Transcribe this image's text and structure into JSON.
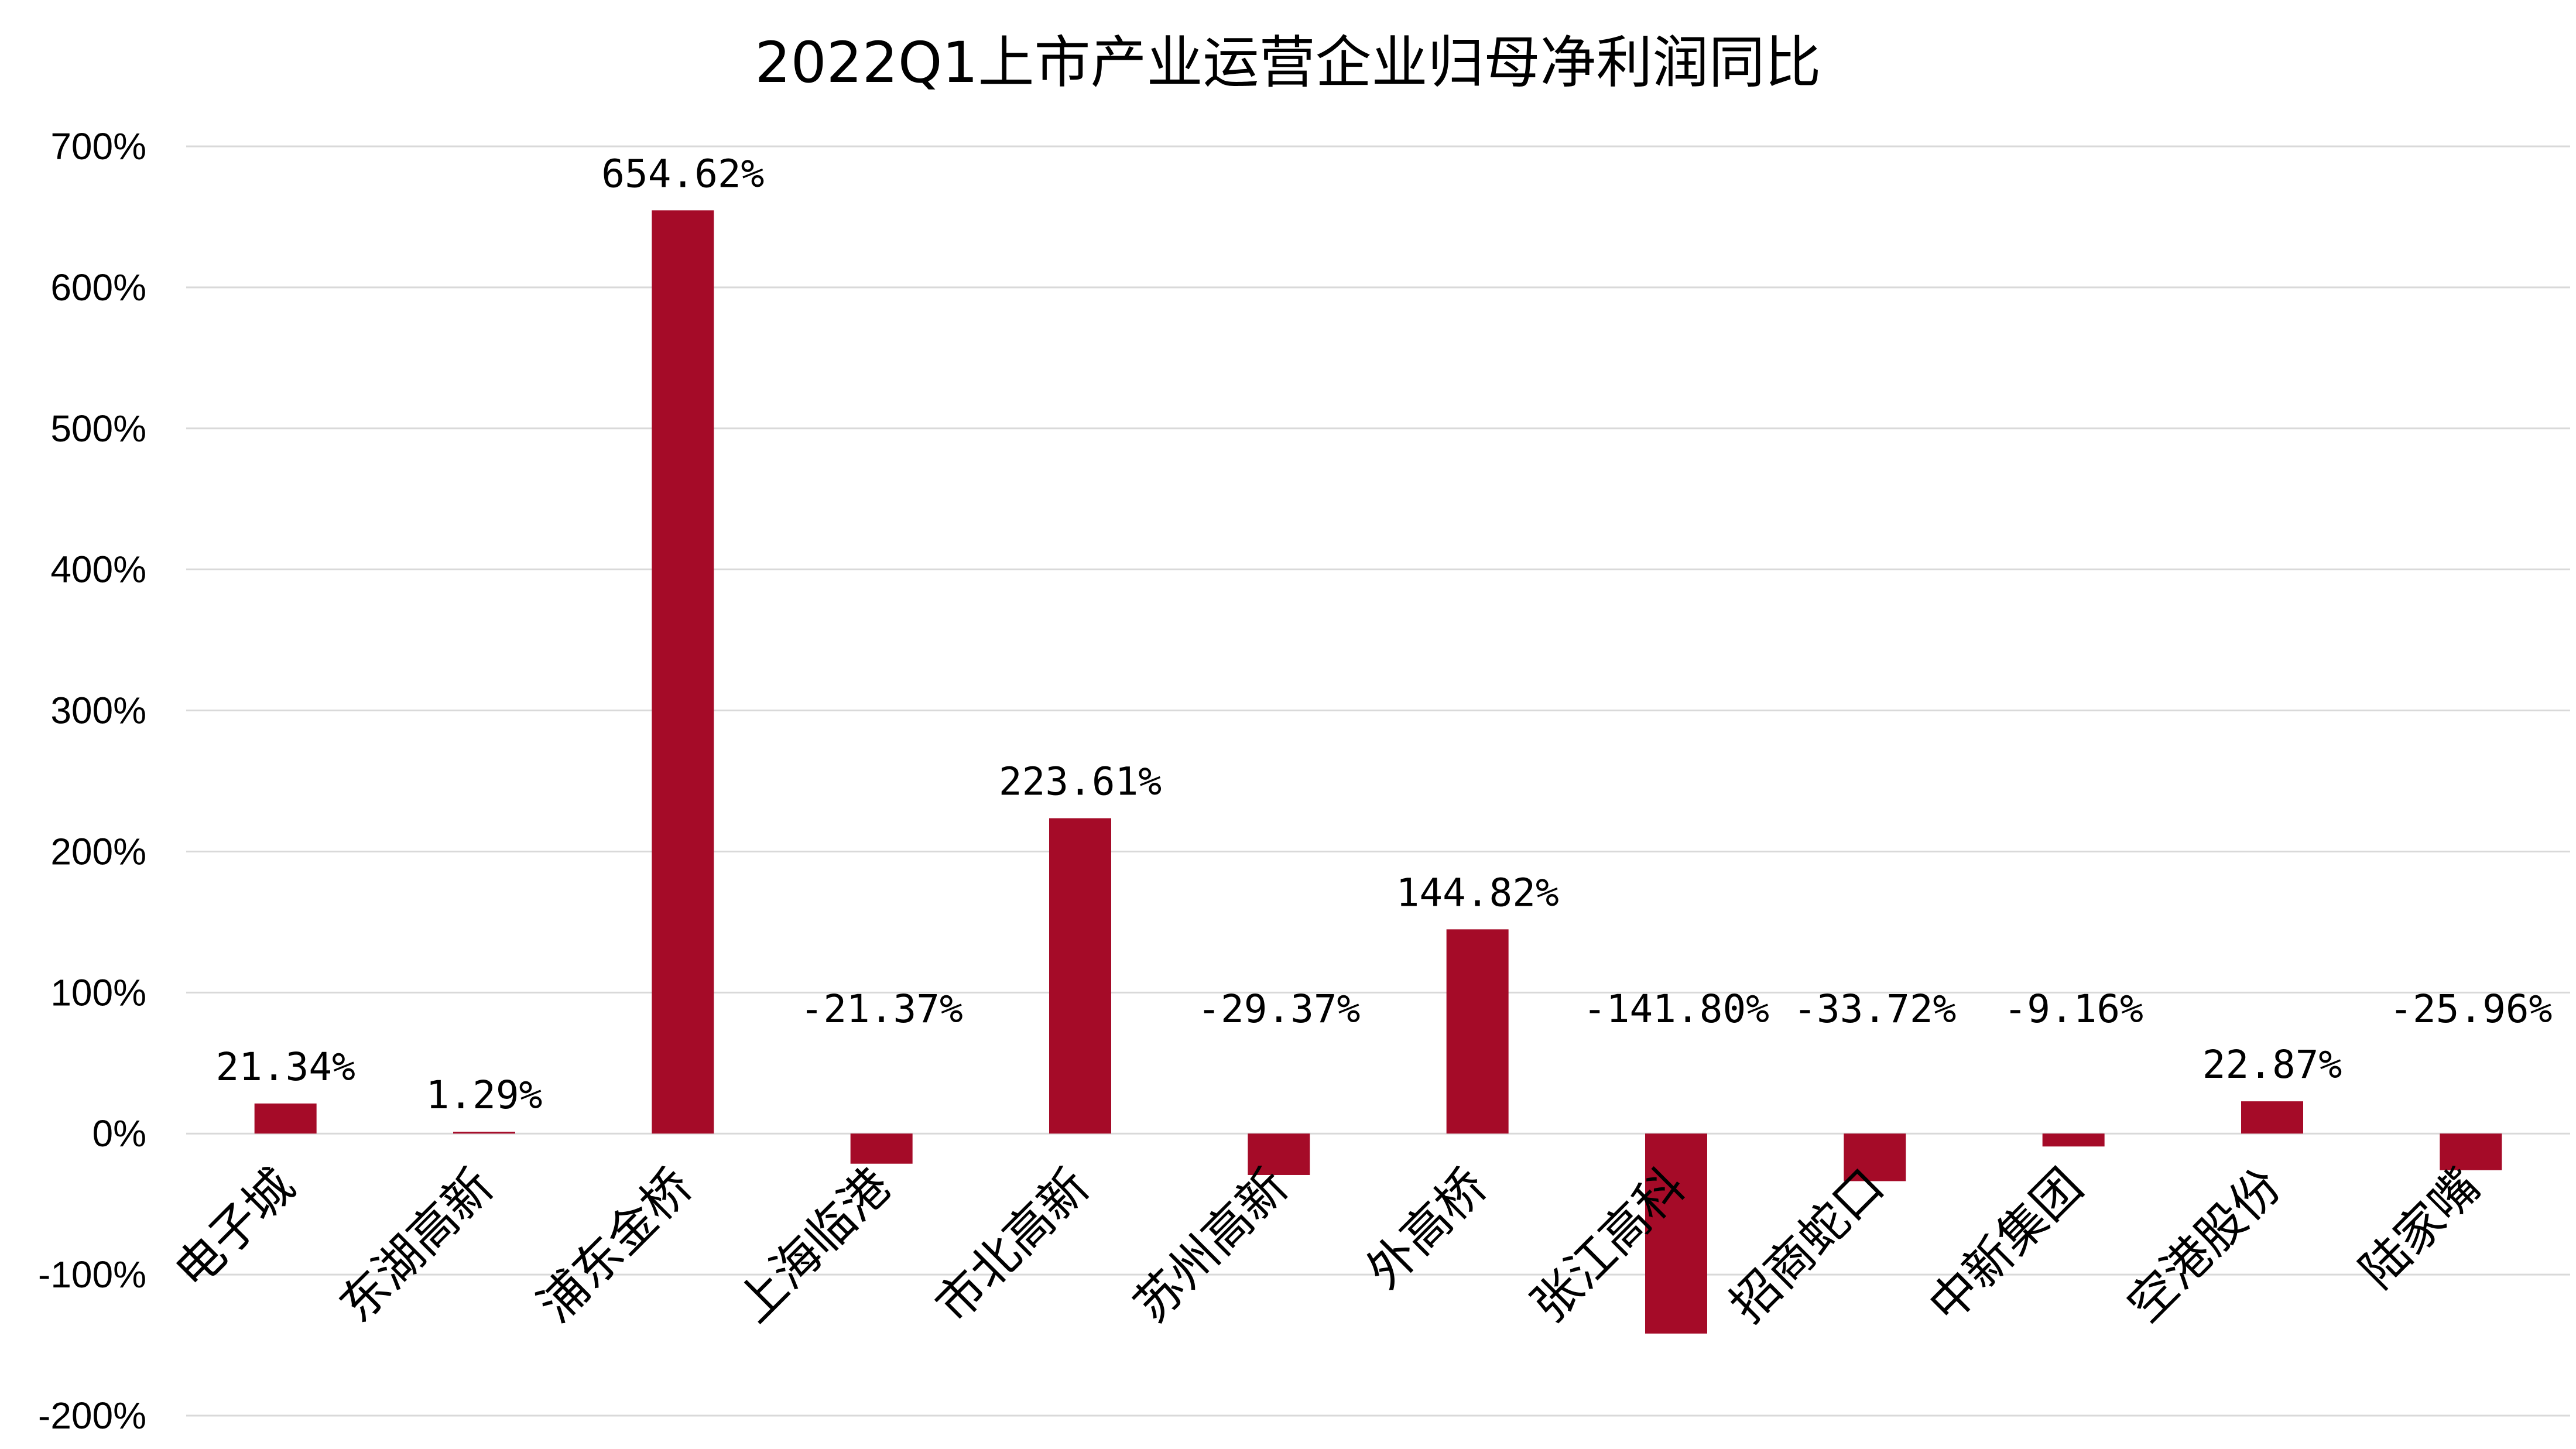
{
  "chart_data": {
    "type": "bar",
    "title": "2022Q1上市产业运营企业归母净利润同比",
    "xlabel": "",
    "ylabel": "",
    "ylim": [
      -200,
      700
    ],
    "yticks": [
      700,
      600,
      500,
      400,
      300,
      200,
      100,
      0,
      -100,
      -200
    ],
    "ytick_labels": [
      "700%",
      "600%",
      "500%",
      "400%",
      "300%",
      "200%",
      "100%",
      "0%",
      "-100%",
      "-200%"
    ],
    "grid": true,
    "legend": "none",
    "bar_color": "#A50B28",
    "categories": [
      "电子城",
      "东湖高新",
      "浦东金桥",
      "上海临港",
      "市北高新",
      "苏州高新",
      "外高桥",
      "张江高科",
      "招商蛇口",
      "中新集团",
      "空港股份",
      "陆家嘴"
    ],
    "values": [
      21.34,
      1.29,
      654.62,
      -21.37,
      223.61,
      -29.37,
      144.82,
      -141.8,
      -33.72,
      -9.16,
      22.87,
      -25.96
    ],
    "data_labels": [
      "21.34%",
      "1.29%",
      "654.62%",
      "-21.37%",
      "223.61%",
      "-29.37%",
      "144.82%",
      "-141.80%",
      "-33.72%",
      "-9.16%",
      "22.87%",
      "-25.96%"
    ]
  }
}
